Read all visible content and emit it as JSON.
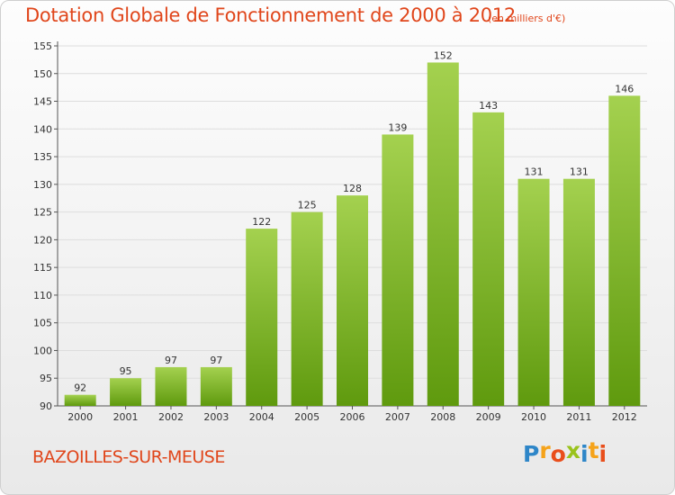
{
  "header": {
    "title": "Dotation Globale de Fonctionnement de 2000 à 2012",
    "subtitle": "(en milliers d'€)"
  },
  "footer": {
    "commune": "BAZOILLES-SUR-MEUSE",
    "logo": {
      "text": "Proxiti",
      "letters": [
        {
          "char": "P",
          "color": "#2e86c8"
        },
        {
          "char": "r",
          "color": "#f5a31a"
        },
        {
          "char": "o",
          "color": "#e94e1b"
        },
        {
          "char": "x",
          "color": "#9ac31c"
        },
        {
          "char": "i",
          "color": "#2e86c8"
        },
        {
          "char": "t",
          "color": "#f5a31a"
        },
        {
          "char": "i",
          "color": "#e94e1b"
        }
      ]
    }
  },
  "colors": {
    "title": "#e0461b",
    "bar_top": "#a4d14f",
    "bar_bottom": "#5f9a0e",
    "grid": "#dddddd"
  },
  "chart_data": {
    "type": "bar",
    "title": "Dotation Globale de Fonctionnement de 2000 à 2012",
    "subtitle": "(en milliers d'€)",
    "categories": [
      "2000",
      "2001",
      "2002",
      "2003",
      "2004",
      "2005",
      "2006",
      "2007",
      "2008",
      "2009",
      "2010",
      "2011",
      "2012"
    ],
    "values": [
      92,
      95,
      97,
      97,
      122,
      125,
      128,
      139,
      152,
      143,
      131,
      131,
      146
    ],
    "ylim": [
      90,
      155
    ],
    "yticks": [
      90,
      95,
      100,
      105,
      110,
      115,
      120,
      125,
      130,
      135,
      140,
      145,
      150,
      155
    ],
    "xlabel": "",
    "ylabel": "",
    "grid": true,
    "legend": "none"
  }
}
